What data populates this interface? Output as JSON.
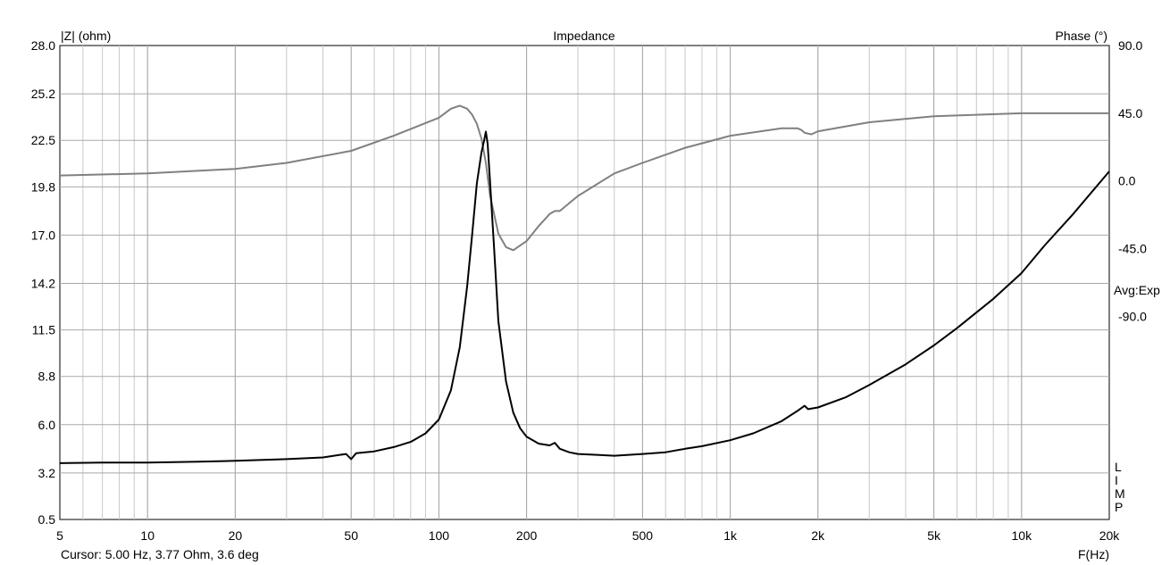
{
  "chart_data": {
    "type": "line",
    "title": "Impedance",
    "ylabel_left": "|Z| (ohm)",
    "ylabel_right": "Phase (°)",
    "xlabel": "F(Hz)",
    "xscale": "log",
    "xlim": [
      5,
      20000
    ],
    "ylim_left": [
      0.5,
      28.0
    ],
    "ylim_right": [
      -225,
      90
    ],
    "x_ticks": [
      5,
      10,
      20,
      50,
      100,
      200,
      500,
      1000,
      2000,
      5000,
      10000,
      20000
    ],
    "x_tick_labels": [
      "5",
      "10",
      "20",
      "50",
      "100",
      "200",
      "500",
      "1k",
      "2k",
      "5k",
      "10k",
      "20k"
    ],
    "y_ticks_left": [
      28.0,
      25.2,
      22.5,
      19.8,
      17.0,
      14.2,
      11.5,
      8.8,
      6.0,
      3.2,
      0.5
    ],
    "y_tick_labels_left": [
      "28.0",
      "25.2",
      "22.5",
      "19.8",
      "17.0",
      "14.2",
      "11.5",
      "8.8",
      "6.0",
      "3.2",
      "0.5"
    ],
    "y_ticks_right": [
      90,
      45,
      0,
      -45,
      -90
    ],
    "y_tick_labels_right": [
      "90.0",
      "45.0",
      "0.0",
      "-45.0",
      "-90.0"
    ],
    "grid": true,
    "averaging_label": "Avg:Exp",
    "lmp_label": [
      "L",
      "I",
      "M",
      "P"
    ],
    "cursor_readout": "Cursor: 5.00 Hz, 3.77 Ohm, 3.6 deg",
    "colors": {
      "impedance": "#000000",
      "phase": "#808080",
      "grid_major": "#a8a8a8",
      "grid_minor": "#c8c8c8"
    },
    "series": [
      {
        "axis": "left",
        "x": [
          5,
          7,
          10,
          15,
          20,
          30,
          40,
          48,
          50,
          52,
          60,
          70,
          80,
          90,
          100,
          110,
          118,
          125,
          130,
          135,
          140,
          143,
          145,
          147,
          150,
          155,
          160,
          170,
          180,
          190,
          200,
          220,
          240,
          250,
          260,
          280,
          300,
          350,
          400,
          500,
          600,
          700,
          800,
          1000,
          1200,
          1500,
          1700,
          1800,
          1850,
          2000,
          2500,
          3000,
          4000,
          5000,
          6000,
          8000,
          10000,
          12000,
          15000,
          20000
        ],
        "y": [
          3.77,
          3.8,
          3.8,
          3.85,
          3.9,
          4.0,
          4.1,
          4.3,
          4.0,
          4.35,
          4.45,
          4.7,
          5.0,
          5.5,
          6.3,
          8.0,
          10.5,
          14.0,
          17.0,
          20.0,
          21.8,
          22.5,
          23.0,
          22.3,
          20.0,
          16.0,
          12.0,
          8.5,
          6.7,
          5.8,
          5.3,
          4.9,
          4.8,
          4.95,
          4.6,
          4.4,
          4.3,
          4.25,
          4.2,
          4.3,
          4.4,
          4.6,
          4.75,
          5.1,
          5.5,
          6.2,
          6.8,
          7.1,
          6.9,
          7.0,
          7.6,
          8.3,
          9.5,
          10.6,
          11.6,
          13.3,
          14.8,
          16.4,
          18.2,
          20.7
        ]
      },
      {
        "axis": "right",
        "x": [
          5,
          10,
          20,
          30,
          50,
          70,
          100,
          110,
          118,
          125,
          130,
          135,
          140,
          145,
          150,
          160,
          170,
          180,
          200,
          220,
          240,
          250,
          260,
          300,
          400,
          500,
          700,
          1000,
          1500,
          1700,
          1750,
          1800,
          1900,
          2000,
          3000,
          5000,
          10000,
          20000
        ],
        "y": [
          3.6,
          5,
          8,
          12,
          20,
          30,
          42,
          48,
          50,
          48,
          44,
          38,
          28,
          12,
          -10,
          -35,
          -44,
          -46,
          -40,
          -30,
          -22,
          -20,
          -20,
          -10,
          5,
          12,
          22,
          30,
          35,
          35,
          34,
          32,
          31,
          33,
          39,
          43,
          45,
          45
        ]
      }
    ]
  }
}
